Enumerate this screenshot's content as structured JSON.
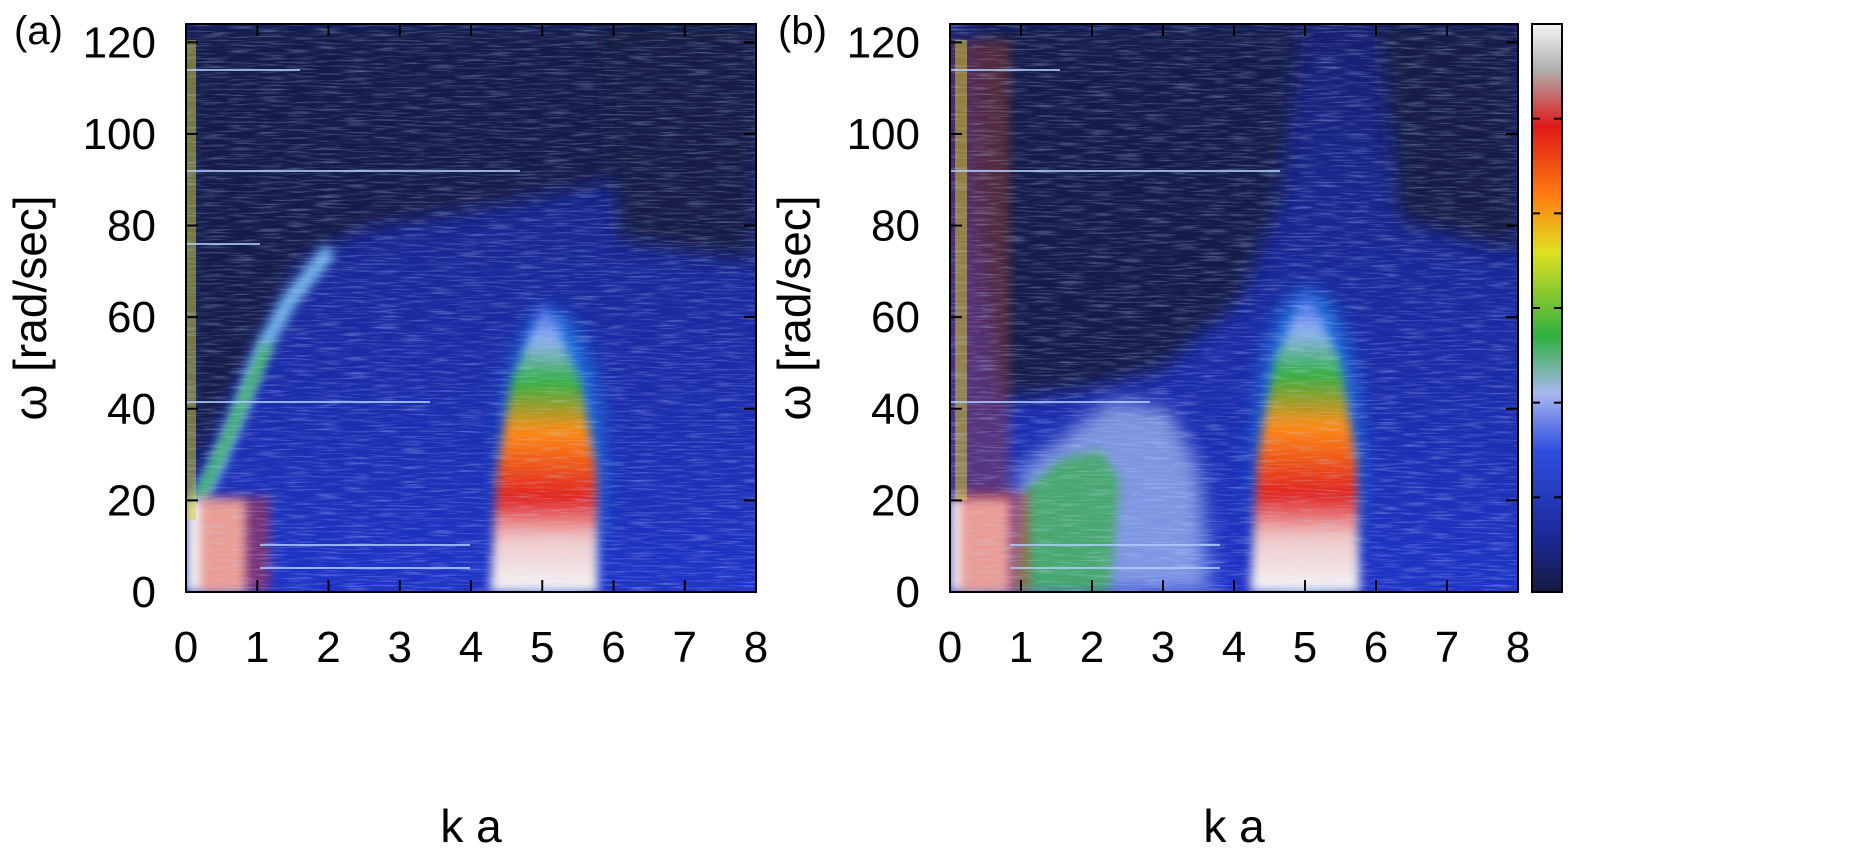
{
  "chart_data": [
    {
      "type": "heatmap",
      "panel_label": "(a)",
      "xlabel": "k a",
      "ylabel": "ω [rad/sec]",
      "xlim": [
        0,
        8
      ],
      "ylim": [
        0,
        124
      ],
      "xticks": [
        "0",
        "1",
        "2",
        "3",
        "4",
        "5",
        "6",
        "7",
        "8"
      ],
      "yticks": [
        "0",
        "20",
        "40",
        "60",
        "80",
        "100",
        "120"
      ],
      "features": {
        "acoustic_branch": {
          "from": [
            0.2,
            20
          ],
          "to": [
            1.8,
            70
          ]
        },
        "peak_band": {
          "k_min": 4.4,
          "k_max": 5.8,
          "omega_max": 60
        },
        "low_k_hot_region": {
          "k_max": 0.9,
          "omega_max": 20
        },
        "horizontal_lines_omega": [
          5,
          10,
          41,
          75,
          91,
          113
        ]
      }
    },
    {
      "type": "heatmap",
      "panel_label": "(b)",
      "xlabel": "k a",
      "ylabel": "ω [rad/sec]",
      "xlim": [
        0,
        8
      ],
      "ylim": [
        0,
        124
      ],
      "xticks": [
        "0",
        "1",
        "2",
        "3",
        "4",
        "5",
        "6",
        "7",
        "8"
      ],
      "yticks": [
        "0",
        "20",
        "40",
        "60",
        "80",
        "100",
        "120"
      ],
      "features": {
        "mid_band": {
          "k_min": 1.0,
          "k_max": 3.2,
          "omega_max": 40
        },
        "peak_band": {
          "k_min": 4.3,
          "k_max": 5.8,
          "omega_max": 65
        },
        "low_k_hot_region": {
          "k_max": 1.3,
          "omega_max": 22
        },
        "horizontal_lines_omega": [
          5,
          10,
          41,
          91,
          113
        ]
      }
    }
  ],
  "colorbar": {
    "colors": [
      "#161a40",
      "#1c2a9a",
      "#2f4fe0",
      "#9fb0f0",
      "#30b040",
      "#e0e020",
      "#ff7a10",
      "#e01818",
      "#b0b0b0",
      "#f4f4f4"
    ]
  }
}
